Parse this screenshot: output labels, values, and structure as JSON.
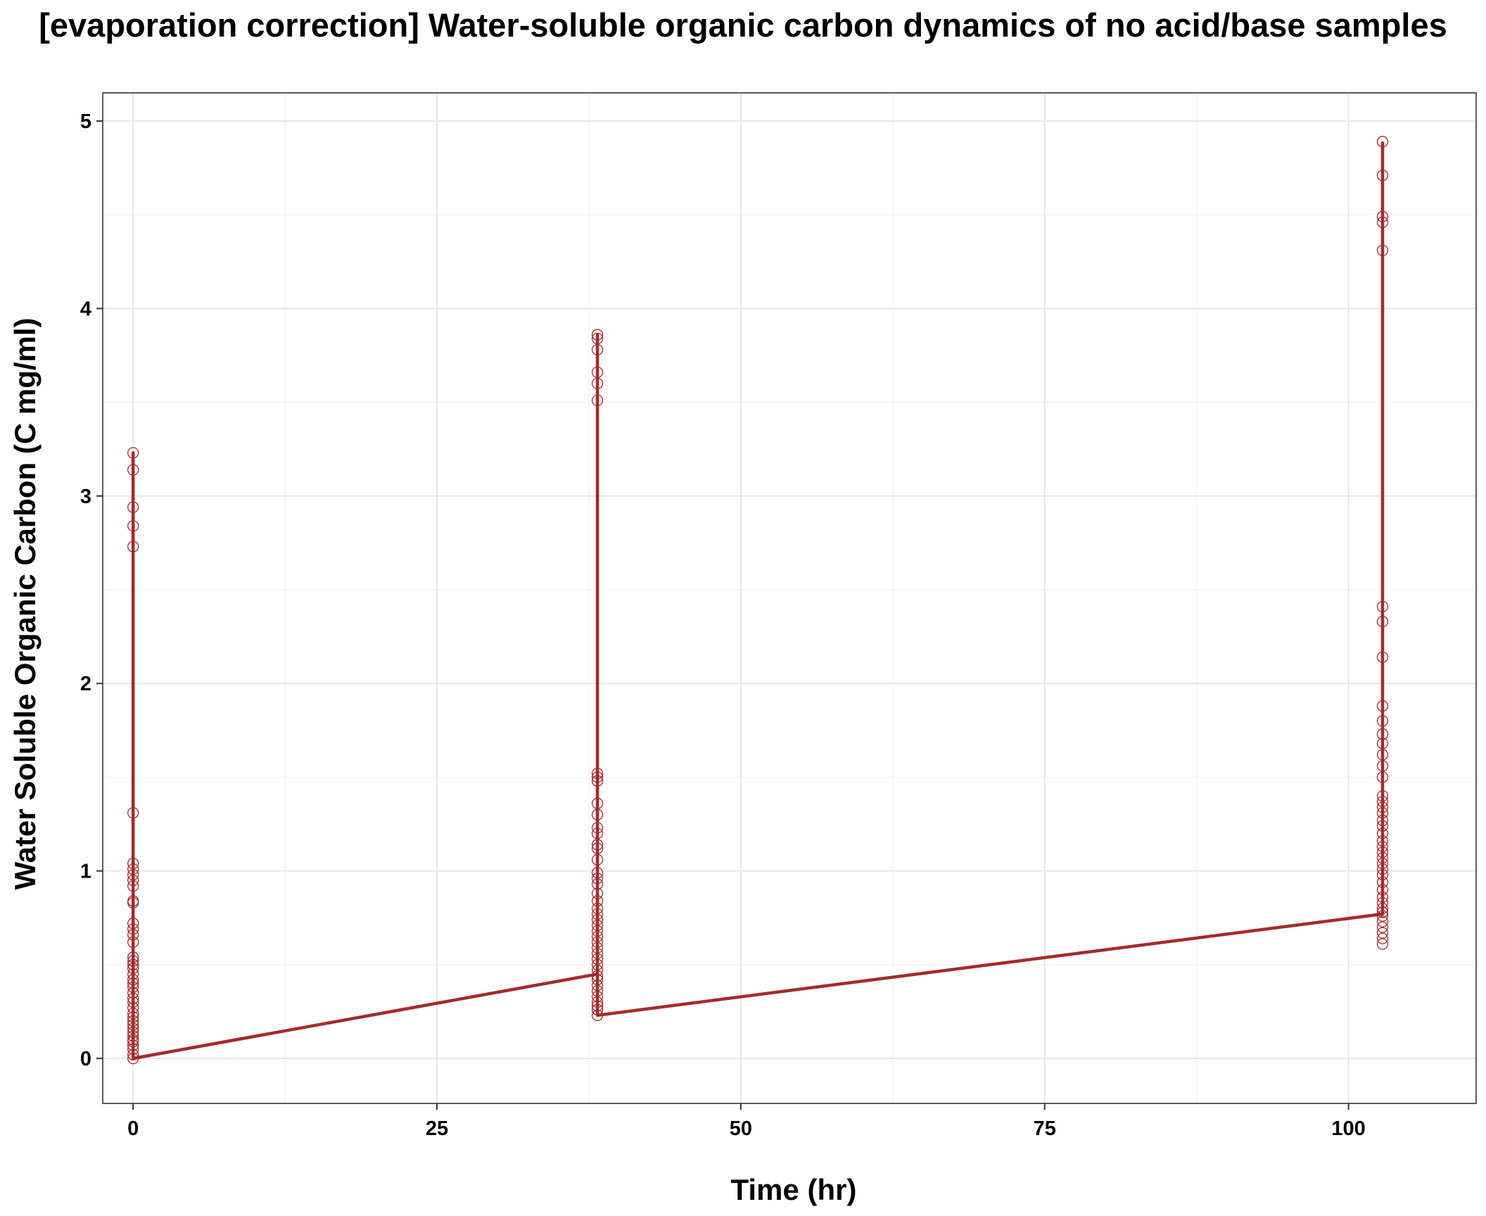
{
  "chart_data": {
    "type": "scatter",
    "title": "[evaporation correction] Water-soluble organic carbon dynamics of no acid/base samples",
    "xlabel": "Time (hr)",
    "ylabel": "Water Soluble Organic Carbon (C mg/ml)",
    "xlim": [
      -2.5,
      110.5
    ],
    "ylim": [
      -0.24,
      5.15
    ],
    "x_ticks": [
      0,
      25,
      50,
      75,
      100
    ],
    "y_ticks": [
      0,
      1,
      2,
      3,
      4,
      5
    ],
    "grid": true,
    "color": "#A52A2A",
    "series": [
      {
        "points": [
          {
            "x": 0,
            "values": [
              0.0,
              0.02,
              0.05,
              0.07,
              0.09,
              0.1,
              0.12,
              0.14,
              0.16,
              0.18,
              0.2,
              0.22,
              0.24,
              0.27,
              0.3,
              0.32,
              0.35,
              0.38,
              0.4,
              0.42,
              0.45,
              0.48,
              0.5,
              0.52,
              0.54,
              0.62,
              0.66,
              0.69,
              0.72,
              0.83,
              0.84,
              0.92,
              0.95,
              0.98,
              1.01,
              1.04,
              1.31,
              2.73,
              2.84,
              2.94,
              3.14,
              3.23
            ]
          },
          {
            "x": 38.2,
            "values": [
              0.23,
              0.26,
              0.28,
              0.3,
              0.33,
              0.36,
              0.39,
              0.42,
              0.44,
              0.47,
              0.5,
              0.53,
              0.56,
              0.59,
              0.62,
              0.65,
              0.68,
              0.71,
              0.74,
              0.77,
              0.8,
              0.84,
              0.88,
              0.93,
              0.96,
              0.99,
              1.06,
              1.12,
              1.14,
              1.2,
              1.23,
              1.3,
              1.36,
              1.48,
              1.5,
              1.52,
              3.51,
              3.6,
              3.66,
              3.78,
              3.84,
              3.86
            ]
          },
          {
            "x": 102.8,
            "values": [
              0.61,
              0.64,
              0.67,
              0.7,
              0.73,
              0.76,
              0.78,
              0.8,
              0.83,
              0.86,
              0.9,
              0.94,
              0.98,
              1.01,
              1.04,
              1.07,
              1.1,
              1.13,
              1.16,
              1.2,
              1.24,
              1.27,
              1.31,
              1.34,
              1.37,
              1.4,
              1.5,
              1.56,
              1.62,
              1.68,
              1.73,
              1.8,
              1.88,
              2.14,
              2.33,
              2.41,
              4.31,
              4.46,
              4.49,
              4.71,
              4.89
            ]
          }
        ],
        "line_path": [
          [
            0,
            0.0
          ],
          [
            0,
            3.23
          ],
          [
            0,
            0.0
          ],
          [
            38.2,
            0.45
          ],
          [
            38.2,
            3.86
          ],
          [
            38.2,
            0.23
          ],
          [
            102.8,
            0.77
          ],
          [
            102.8,
            4.89
          ]
        ]
      }
    ]
  }
}
